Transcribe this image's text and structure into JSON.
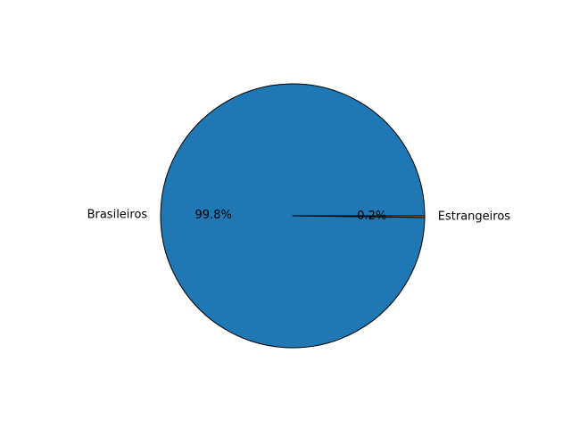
{
  "chart_data": {
    "type": "pie",
    "title": "",
    "categories": [
      "Brasileiros",
      "Estrangeiros"
    ],
    "values": [
      99.8,
      0.2
    ],
    "value_labels": [
      "99.8%",
      "0.2%"
    ],
    "colors": [
      "#1f77b4",
      "#ff7f0e"
    ],
    "edge_color": "#000000",
    "start_angle_deg": 0,
    "direction": "counterclockwise",
    "legend": "none"
  }
}
